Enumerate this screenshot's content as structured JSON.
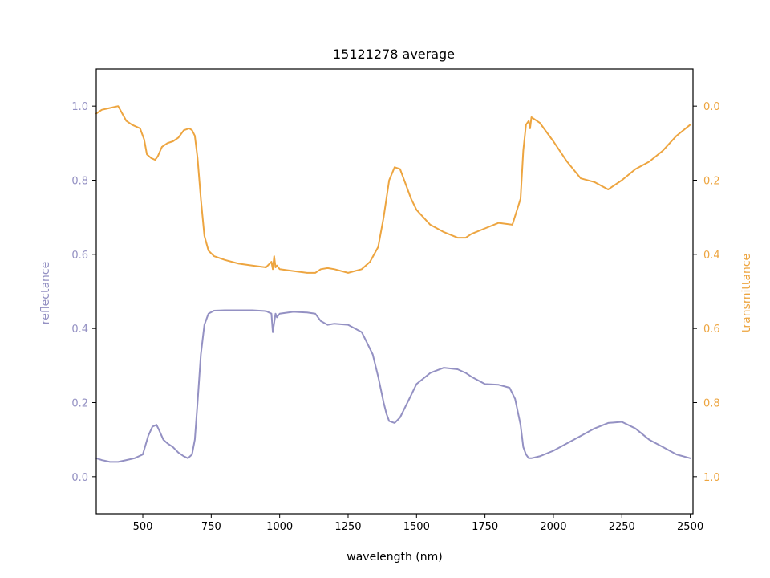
{
  "chart_data": {
    "type": "line",
    "title": "15121278 average",
    "xlabel": "wavelength (nm)",
    "ylabel": "reflectance",
    "y2label": "transmittance",
    "xlim": [
      330,
      2510
    ],
    "ylim": [
      -0.1,
      1.1
    ],
    "y2lim": [
      1.1,
      -0.1
    ],
    "y2_inverted": true,
    "x_ticks": [
      "500",
      "750",
      "1000",
      "1250",
      "1500",
      "1750",
      "2000",
      "2250",
      "2500"
    ],
    "y_ticks": [
      "0.0",
      "0.2",
      "0.4",
      "0.6",
      "0.8",
      "1.0"
    ],
    "y2_ticks": [
      "0.0",
      "0.2",
      "0.4",
      "0.6",
      "0.8",
      "1.0"
    ],
    "grid": false,
    "legend": "none",
    "colors": {
      "reflectance": "#9491c3",
      "transmittance": "#eda540"
    },
    "series": [
      {
        "axis": "left",
        "x": [
          330,
          350,
          380,
          410,
          440,
          470,
          500,
          520,
          535,
          550,
          560,
          575,
          590,
          610,
          630,
          650,
          665,
          680,
          690,
          700,
          712,
          725,
          740,
          760,
          800,
          850,
          900,
          950,
          970,
          975,
          985,
          990,
          1000,
          1050,
          1100,
          1130,
          1150,
          1175,
          1200,
          1250,
          1300,
          1320,
          1340,
          1360,
          1380,
          1390,
          1400,
          1420,
          1440,
          1460,
          1480,
          1500,
          1550,
          1600,
          1650,
          1680,
          1700,
          1750,
          1800,
          1840,
          1860,
          1880,
          1890,
          1900,
          1910,
          1920,
          1950,
          2000,
          2050,
          2100,
          2150,
          2200,
          2250,
          2300,
          2350,
          2400,
          2450,
          2500
        ],
        "y": [
          0.05,
          0.045,
          0.04,
          0.04,
          0.045,
          0.05,
          0.06,
          0.11,
          0.135,
          0.14,
          0.125,
          0.1,
          0.09,
          0.08,
          0.065,
          0.055,
          0.05,
          0.06,
          0.1,
          0.2,
          0.33,
          0.41,
          0.44,
          0.448,
          0.449,
          0.449,
          0.449,
          0.447,
          0.44,
          0.39,
          0.44,
          0.43,
          0.44,
          0.445,
          0.443,
          0.44,
          0.42,
          0.41,
          0.413,
          0.41,
          0.39,
          0.36,
          0.33,
          0.27,
          0.2,
          0.17,
          0.15,
          0.145,
          0.16,
          0.19,
          0.22,
          0.25,
          0.28,
          0.294,
          0.29,
          0.28,
          0.27,
          0.25,
          0.248,
          0.24,
          0.21,
          0.14,
          0.08,
          0.06,
          0.05,
          0.05,
          0.055,
          0.07,
          0.09,
          0.11,
          0.13,
          0.145,
          0.148,
          0.13,
          0.1,
          0.08,
          0.06,
          0.05
        ]
      },
      {
        "axis": "right",
        "x": [
          330,
          350,
          380,
          410,
          425,
          440,
          460,
          490,
          505,
          515,
          530,
          545,
          555,
          570,
          590,
          610,
          630,
          650,
          670,
          680,
          690,
          700,
          712,
          725,
          740,
          760,
          800,
          850,
          900,
          950,
          970,
          975,
          980,
          985,
          990,
          1000,
          1050,
          1100,
          1130,
          1150,
          1175,
          1200,
          1250,
          1300,
          1330,
          1360,
          1380,
          1400,
          1420,
          1440,
          1460,
          1480,
          1500,
          1550,
          1600,
          1650,
          1680,
          1700,
          1750,
          1800,
          1850,
          1880,
          1890,
          1900,
          1910,
          1915,
          1920,
          1950,
          2000,
          2050,
          2100,
          2150,
          2200,
          2250,
          2300,
          2350,
          2400,
          2450,
          2500
        ],
        "y": [
          0.02,
          0.01,
          0.005,
          0.0,
          0.02,
          0.04,
          0.05,
          0.06,
          0.09,
          0.13,
          0.14,
          0.145,
          0.135,
          0.11,
          0.1,
          0.095,
          0.085,
          0.065,
          0.06,
          0.065,
          0.08,
          0.14,
          0.25,
          0.35,
          0.39,
          0.405,
          0.415,
          0.425,
          0.43,
          0.435,
          0.42,
          0.44,
          0.405,
          0.435,
          0.43,
          0.44,
          0.445,
          0.45,
          0.45,
          0.44,
          0.437,
          0.44,
          0.45,
          0.44,
          0.42,
          0.38,
          0.3,
          0.2,
          0.165,
          0.17,
          0.21,
          0.25,
          0.28,
          0.32,
          0.34,
          0.355,
          0.355,
          0.345,
          0.33,
          0.315,
          0.32,
          0.25,
          0.12,
          0.05,
          0.04,
          0.06,
          0.03,
          0.045,
          0.095,
          0.15,
          0.195,
          0.205,
          0.225,
          0.2,
          0.17,
          0.15,
          0.12,
          0.08,
          0.05
        ]
      }
    ]
  }
}
